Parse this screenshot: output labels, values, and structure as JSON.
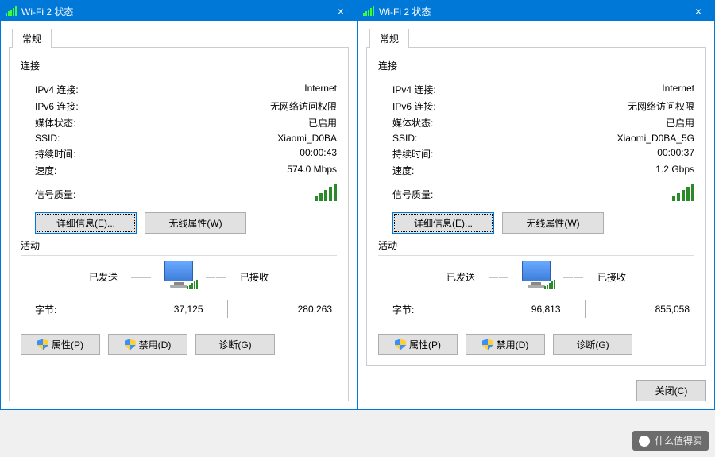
{
  "colors": {
    "accent": "#0078d7",
    "signal_green": "#2a8a2a",
    "button_bg": "#e1e1e1",
    "button_border": "#adadad",
    "divider": "#dcdcdc",
    "window_bg": "#ffffff"
  },
  "labels": {
    "section_connection": "连接",
    "ipv4": "IPv4 连接:",
    "ipv6": "IPv6 连接:",
    "media_state": "媒体状态:",
    "ssid": "SSID:",
    "duration": "持续时间:",
    "speed": "速度:",
    "signal_quality": "信号质量:",
    "details_btn": "详细信息(E)...",
    "wireless_btn": "无线属性(W)",
    "section_activity": "活动",
    "sent": "已发送",
    "received": "已接收",
    "bytes": "字节:",
    "properties_btn": "属性(P)",
    "disable_btn": "禁用(D)",
    "diagnose_btn": "诊断(G)",
    "close_btn": "关闭(C)",
    "tab_general": "常规"
  },
  "windows": [
    {
      "title": "Wi-Fi 2 状态",
      "ipv4": "Internet",
      "ipv6": "无网络访问权限",
      "media_state": "已启用",
      "ssid": "Xiaomi_D0BA",
      "duration": "00:00:43",
      "speed": "574.0 Mbps",
      "bytes_sent": "37,125",
      "bytes_recv": "280,263",
      "show_footer": false
    },
    {
      "title": "Wi-Fi 2 状态",
      "ipv4": "Internet",
      "ipv6": "无网络访问权限",
      "media_state": "已启用",
      "ssid": "Xiaomi_D0BA_5G",
      "duration": "00:00:37",
      "speed": "1.2 Gbps",
      "bytes_sent": "96,813",
      "bytes_recv": "855,058",
      "show_footer": true
    }
  ],
  "watermark": "什么值得买"
}
